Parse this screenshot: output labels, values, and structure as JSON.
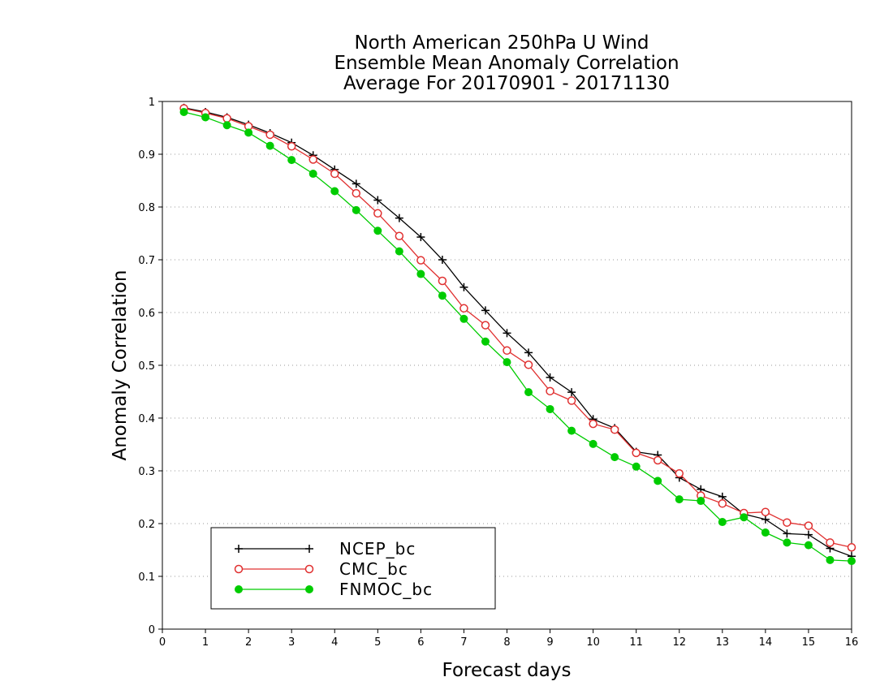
{
  "chart_data": {
    "type": "line",
    "title": [
      "North American 250hPa U Wind",
      "Ensemble Mean Anomaly Correlation",
      "Average For 20170901 - 20171130"
    ],
    "xlabel": "Forecast days",
    "ylabel": "Anomaly Correlation",
    "xlim": [
      0,
      16
    ],
    "ylim": [
      0,
      1
    ],
    "xticks": [
      "0",
      "1",
      "2",
      "3",
      "4",
      "5",
      "6",
      "7",
      "8",
      "9",
      "10",
      "11",
      "12",
      "13",
      "14",
      "15",
      "16"
    ],
    "yticks": [
      "0",
      "0.1",
      "0.2",
      "0.3",
      "0.4",
      "0.5",
      "0.6",
      "0.7",
      "0.8",
      "0.9",
      "1"
    ],
    "grid": "horizontal dotted",
    "legend_position": "bottom-left",
    "x": [
      0.5,
      1,
      1.5,
      2,
      2.5,
      3,
      3.5,
      4,
      4.5,
      5,
      5.5,
      6,
      6.5,
      7,
      7.5,
      8,
      8.5,
      9,
      9.5,
      10,
      10.5,
      11,
      11.5,
      12,
      12.5,
      13,
      13.5,
      14,
      14.5,
      15,
      15.5,
      16
    ],
    "series": [
      {
        "name": "NCEP_bc",
        "color": "#000000",
        "marker": "plus",
        "values": [
          0.988,
          0.98,
          0.97,
          0.956,
          0.94,
          0.922,
          0.898,
          0.871,
          0.844,
          0.813,
          0.779,
          0.743,
          0.7,
          0.648,
          0.604,
          0.561,
          0.524,
          0.477,
          0.449,
          0.398,
          0.381,
          0.336,
          0.33,
          0.287,
          0.265,
          0.251,
          0.218,
          0.208,
          0.181,
          0.179,
          0.153,
          0.138
        ]
      },
      {
        "name": "CMC_bc",
        "color": "#e03030",
        "marker": "open-circle",
        "values": [
          0.987,
          0.978,
          0.968,
          0.953,
          0.937,
          0.915,
          0.89,
          0.863,
          0.826,
          0.788,
          0.745,
          0.699,
          0.66,
          0.608,
          0.576,
          0.528,
          0.501,
          0.451,
          0.433,
          0.389,
          0.378,
          0.334,
          0.32,
          0.295,
          0.253,
          0.238,
          0.22,
          0.222,
          0.202,
          0.196,
          0.164,
          0.155
        ]
      },
      {
        "name": "FNMOC_bc",
        "color": "#00cc00",
        "marker": "filled-circle",
        "values": [
          0.98,
          0.97,
          0.955,
          0.941,
          0.916,
          0.889,
          0.863,
          0.83,
          0.794,
          0.755,
          0.716,
          0.673,
          0.632,
          0.588,
          0.545,
          0.506,
          0.449,
          0.417,
          0.376,
          0.351,
          0.326,
          0.308,
          0.281,
          0.246,
          0.243,
          0.203,
          0.212,
          0.183,
          0.164,
          0.159,
          0.131,
          0.129
        ]
      }
    ]
  }
}
